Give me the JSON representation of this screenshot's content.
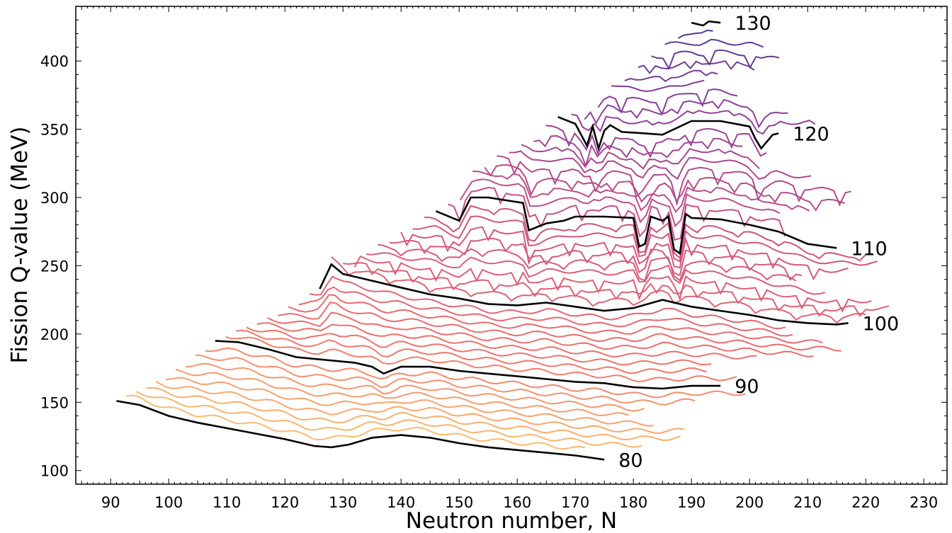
{
  "chart_data": {
    "type": "line",
    "xlabel": "Neutron number, N",
    "ylabel": "Fission Q-value (MeV)",
    "xlim": [
      84,
      234
    ],
    "ylim": [
      90,
      440
    ],
    "xticks": [
      "90",
      "100",
      "110",
      "120",
      "130",
      "140",
      "150",
      "160",
      "170",
      "180",
      "190",
      "200",
      "210",
      "220",
      "230"
    ],
    "yticks": [
      "100",
      "150",
      "200",
      "250",
      "300",
      "350",
      "400"
    ],
    "grid": false,
    "legend": "none",
    "colors": {
      "highlight": "#000000",
      "low_z": "#fcc16e",
      "mid_z": "#f0716a",
      "high_z": "#d1557e",
      "very_high_z": "#8f3f99",
      "top_z": "#3e3a8e"
    },
    "series": [
      {
        "name": "80",
        "x": [
          91,
          95,
          100,
          105,
          110,
          115,
          120,
          125,
          128,
          131,
          135,
          140,
          145,
          150,
          155,
          160,
          165,
          170,
          175
        ],
        "y": [
          151,
          148,
          140,
          135,
          131,
          127,
          123,
          118,
          117,
          119,
          124,
          126,
          124,
          120,
          117,
          115,
          113,
          111,
          108
        ]
      },
      {
        "name": "90",
        "x": [
          108,
          112,
          117,
          122,
          127,
          132,
          135,
          137,
          140,
          145,
          150,
          155,
          160,
          165,
          170,
          175,
          180,
          185,
          190,
          195
        ],
        "y": [
          195,
          194,
          189,
          183,
          181,
          179,
          176,
          171,
          176,
          176,
          173,
          171,
          169,
          167,
          165,
          164,
          161,
          160,
          162,
          162
        ]
      },
      {
        "name": "100",
        "x": [
          126,
          128,
          130,
          135,
          140,
          145,
          150,
          155,
          160,
          165,
          170,
          175,
          180,
          185,
          190,
          195,
          200,
          205,
          210,
          215,
          217
        ],
        "y": [
          233,
          251,
          244,
          239,
          234,
          229,
          226,
          222,
          221,
          223,
          220,
          217,
          219,
          225,
          220,
          217,
          214,
          210,
          208,
          207,
          208
        ]
      },
      {
        "name": "110",
        "x": [
          146,
          150,
          152,
          155,
          158,
          161,
          162,
          165,
          168,
          170,
          175,
          180,
          181,
          182,
          183,
          185,
          186,
          187,
          188,
          189,
          190,
          195,
          200,
          205,
          210,
          215
        ],
        "y": [
          290,
          283,
          300,
          300,
          298,
          296,
          276,
          281,
          283,
          286,
          286,
          285,
          264,
          266,
          286,
          283,
          286,
          262,
          259,
          288,
          285,
          284,
          280,
          275,
          266,
          263
        ]
      },
      {
        "name": "120",
        "x": [
          167,
          170,
          172,
          173,
          174,
          175,
          176,
          178,
          182,
          185,
          190,
          195,
          200,
          201,
          202,
          204,
          205
        ],
        "y": [
          359,
          354,
          338,
          352,
          336,
          349,
          353,
          348,
          347,
          346,
          356,
          356,
          352,
          343,
          336,
          346,
          347
        ]
      },
      {
        "name": "130",
        "x": [
          190,
          192,
          193,
          195
        ],
        "y": [
          428,
          426,
          429,
          428
        ]
      }
    ]
  },
  "series_labels": [
    "80",
    "90",
    "100",
    "110",
    "120",
    "130"
  ]
}
